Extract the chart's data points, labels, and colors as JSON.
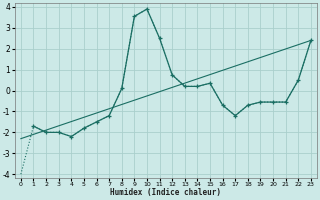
{
  "xlabel": "Humidex (Indice chaleur)",
  "xlim": [
    -0.5,
    23.5
  ],
  "ylim": [
    -4.2,
    4.2
  ],
  "xticks": [
    0,
    1,
    2,
    3,
    4,
    5,
    6,
    7,
    8,
    9,
    10,
    11,
    12,
    13,
    14,
    15,
    16,
    17,
    18,
    19,
    20,
    21,
    22,
    23
  ],
  "yticks": [
    -4,
    -3,
    -2,
    -1,
    0,
    1,
    2,
    3,
    4
  ],
  "background_color": "#cce9e7",
  "grid_color": "#aacfcc",
  "line_color": "#1a6e63",
  "dotted_x": [
    0,
    1,
    2,
    3,
    4,
    5,
    6,
    7,
    8,
    9,
    10,
    11,
    12,
    13,
    14,
    15,
    16,
    17,
    18,
    19,
    20,
    21,
    22,
    23
  ],
  "dotted_y": [
    -4.0,
    -1.7,
    -2.0,
    -2.0,
    -2.2,
    -1.8,
    -1.5,
    -1.2,
    0.1,
    3.55,
    3.9,
    2.5,
    0.75,
    0.2,
    0.2,
    0.35,
    -0.7,
    -1.2,
    -0.7,
    -0.55,
    -0.55,
    -0.55,
    0.5,
    2.4
  ],
  "solid_x": [
    1,
    2,
    3,
    4,
    5,
    6,
    7,
    8,
    9,
    10,
    11,
    12,
    13,
    14,
    15,
    16,
    17,
    18,
    19,
    20,
    21,
    22,
    23
  ],
  "solid_y": [
    -1.7,
    -2.0,
    -2.0,
    -2.2,
    -1.8,
    -1.5,
    -1.2,
    0.1,
    3.55,
    3.9,
    2.5,
    0.75,
    0.2,
    0.2,
    0.35,
    -0.7,
    -1.2,
    -0.7,
    -0.55,
    -0.55,
    -0.55,
    0.5,
    2.4
  ],
  "trend_x": [
    0,
    23
  ],
  "trend_y": [
    -2.3,
    2.4
  ]
}
